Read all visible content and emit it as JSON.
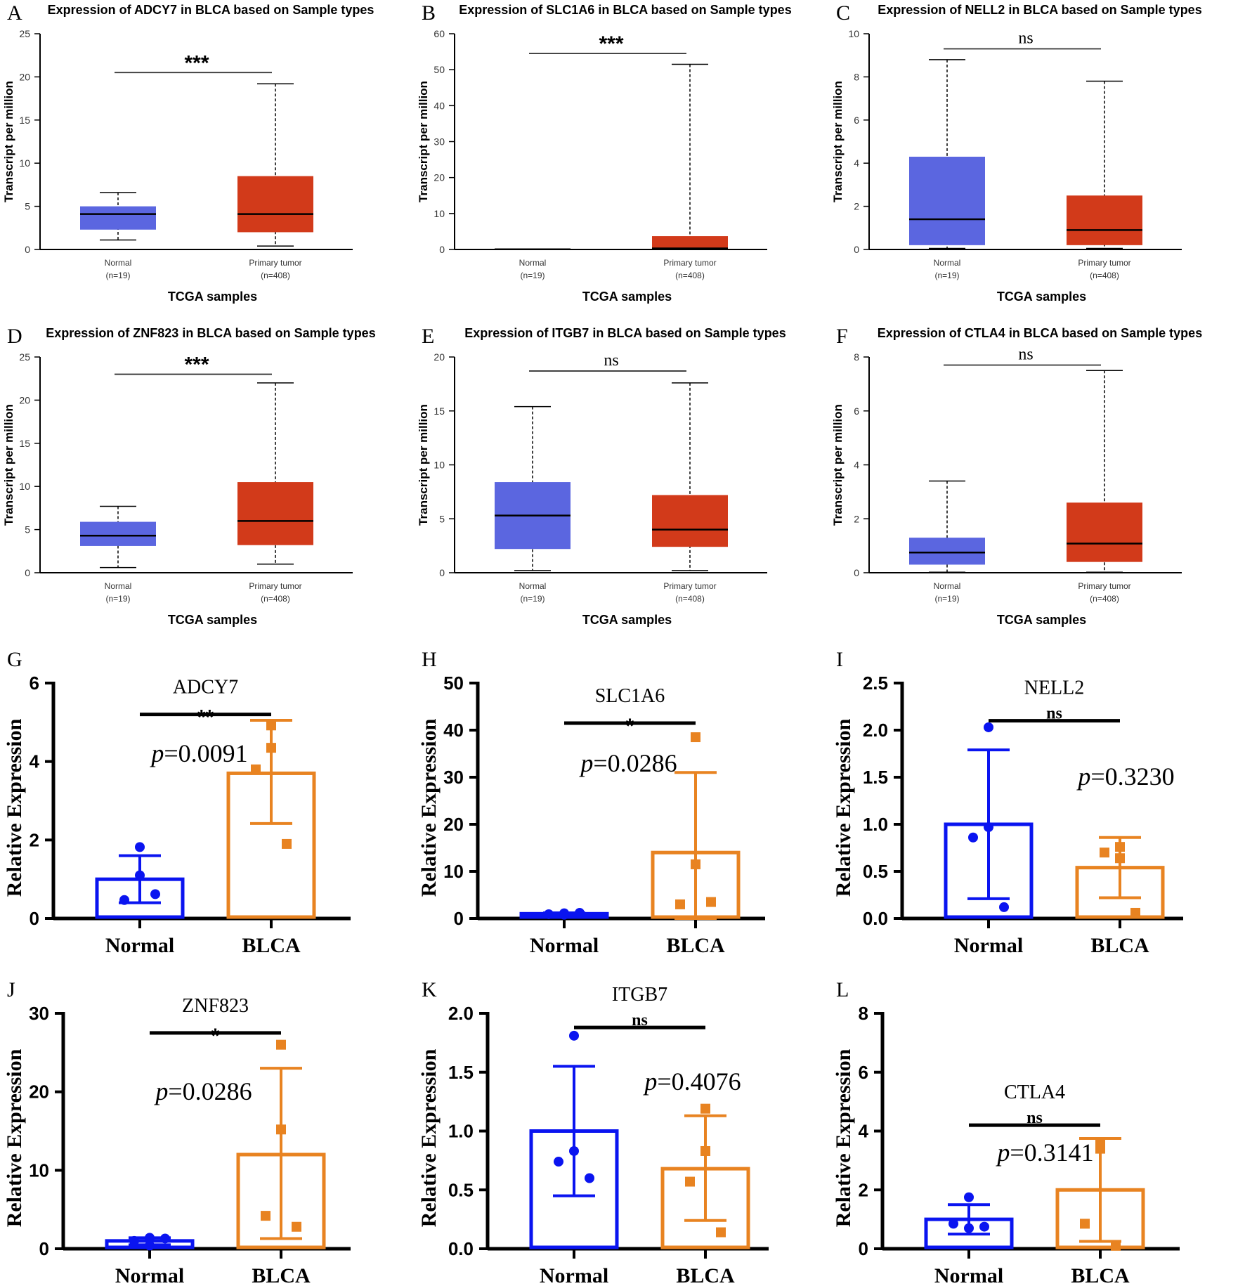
{
  "chart_data": [
    {
      "panel": "A",
      "type": "box",
      "title": "Expression of ADCY7 in BLCA based on Sample types",
      "ylabel": "Transcript per million",
      "xlabel": "TCGA samples",
      "ylim": [
        0,
        25
      ],
      "yticks": [
        0,
        5,
        10,
        15,
        20,
        25
      ],
      "categories": [
        "Normal",
        "Primary tumor"
      ],
      "counts": [
        "(n=19)",
        "(n=408)"
      ],
      "boxes": [
        {
          "min": 1.1,
          "q1": 2.3,
          "median": 4.1,
          "q3": 5.0,
          "max": 6.6
        },
        {
          "min": 0.4,
          "q1": 2.0,
          "median": 4.1,
          "q3": 8.5,
          "max": 19.2
        }
      ],
      "significance": {
        "label": "***",
        "level": 20.5
      }
    },
    {
      "panel": "B",
      "type": "box",
      "title": "Expression of SLC1A6 in BLCA based on Sample types",
      "ylabel": "Transcript per million",
      "xlabel": "TCGA samples",
      "ylim": [
        0,
        60
      ],
      "yticks": [
        0,
        10,
        20,
        30,
        40,
        50,
        60
      ],
      "categories": [
        "Normal",
        "Primary tumor"
      ],
      "counts": [
        "(n=19)",
        "(n=408)"
      ],
      "boxes": [
        {
          "min": 0,
          "q1": 0,
          "median": 0.05,
          "q3": 0.1,
          "max": 0.1
        },
        {
          "min": 0,
          "q1": 0.1,
          "median": 0.3,
          "q3": 3.7,
          "max": 51.5
        }
      ],
      "significance": {
        "label": "***",
        "level": 54.5
      }
    },
    {
      "panel": "C",
      "type": "box",
      "title": "Expression of NELL2 in BLCA based on Sample types",
      "ylabel": "Transcript per million",
      "xlabel": "TCGA samples",
      "ylim": [
        0,
        10
      ],
      "yticks": [
        0,
        2,
        4,
        6,
        8,
        10
      ],
      "categories": [
        "Normal",
        "Primary tumor"
      ],
      "counts": [
        "(n=19)",
        "(n=408)"
      ],
      "boxes": [
        {
          "min": 0.05,
          "q1": 0.2,
          "median": 1.4,
          "q3": 4.3,
          "max": 8.8
        },
        {
          "min": 0.05,
          "q1": 0.2,
          "median": 0.9,
          "q3": 2.5,
          "max": 7.8
        }
      ],
      "significance": {
        "label": "ns",
        "level": 9.3
      }
    },
    {
      "panel": "D",
      "type": "box",
      "title": "Expression of ZNF823 in BLCA based on Sample types",
      "ylabel": "Transcript per million",
      "xlabel": "TCGA samples",
      "ylim": [
        0,
        25
      ],
      "yticks": [
        0,
        5,
        10,
        15,
        20,
        25
      ],
      "categories": [
        "Normal",
        "Primary tumor"
      ],
      "counts": [
        "(n=19)",
        "(n=408)"
      ],
      "boxes": [
        {
          "min": 0.6,
          "q1": 3.1,
          "median": 4.3,
          "q3": 5.9,
          "max": 7.7
        },
        {
          "min": 1.0,
          "q1": 3.2,
          "median": 6.0,
          "q3": 10.5,
          "max": 22.0
        }
      ],
      "significance": {
        "label": "***",
        "level": 23.0
      }
    },
    {
      "panel": "E",
      "type": "box",
      "title": "Expression of ITGB7 in BLCA based on Sample types",
      "ylabel": "Transcript per million",
      "xlabel": "TCGA samples",
      "ylim": [
        0,
        20
      ],
      "yticks": [
        0,
        5,
        10,
        15,
        20
      ],
      "categories": [
        "Normal",
        "Primary tumor"
      ],
      "counts": [
        "(n=19)",
        "(n=408)"
      ],
      "boxes": [
        {
          "min": 0.2,
          "q1": 2.2,
          "median": 5.3,
          "q3": 8.4,
          "max": 15.4
        },
        {
          "min": 0.2,
          "q1": 2.4,
          "median": 4.0,
          "q3": 7.2,
          "max": 17.6
        }
      ],
      "significance": {
        "label": "ns",
        "level": 18.7
      }
    },
    {
      "panel": "F",
      "type": "box",
      "title": "Expression of CTLA4 in BLCA based on Sample types",
      "ylabel": "Transcript per million",
      "xlabel": "TCGA samples",
      "ylim": [
        0,
        8
      ],
      "yticks": [
        0,
        2,
        4,
        6,
        8
      ],
      "categories": [
        "Normal",
        "Primary tumor"
      ],
      "counts": [
        "(n=19)",
        "(n=408)"
      ],
      "boxes": [
        {
          "min": 0.02,
          "q1": 0.3,
          "median": 0.75,
          "q3": 1.3,
          "max": 3.4
        },
        {
          "min": 0.02,
          "q1": 0.4,
          "median": 1.08,
          "q3": 2.6,
          "max": 7.5
        }
      ],
      "significance": {
        "label": "ns",
        "level": 7.7
      }
    },
    {
      "panel": "G",
      "type": "bar",
      "title": "ADCY7",
      "ylabel": "Relative Expression",
      "ylim": [
        0,
        6
      ],
      "yticks": [
        "0",
        "2",
        "4",
        "6"
      ],
      "categories": [
        "Normal",
        "BLCA"
      ],
      "bars": [
        {
          "mean": 1.0,
          "err_low": 0.4,
          "err_high": 1.6,
          "points": [
            1.82,
            1.1,
            0.47,
            0.62
          ]
        },
        {
          "mean": 3.7,
          "err_low": 2.42,
          "err_high": 5.05,
          "points": [
            4.92,
            4.35,
            3.8,
            1.9
          ]
        }
      ],
      "p_value": "=0.0091",
      "p_label": "p",
      "significance": {
        "label": "**",
        "level": 5.2
      }
    },
    {
      "panel": "H",
      "type": "bar",
      "title": "SLC1A6",
      "ylabel": "Relative Expression",
      "ylim": [
        0,
        50
      ],
      "yticks": [
        "0",
        "10",
        "20",
        "30",
        "40",
        "50"
      ],
      "categories": [
        "Normal",
        "BLCA"
      ],
      "bars": [
        {
          "mean": 1.0,
          "err_low": 0.8,
          "err_high": 1.2,
          "points": [
            0.8,
            1.1,
            0.9,
            1.2
          ]
        },
        {
          "mean": 14.0,
          "err_low": 0,
          "err_high": 31.0,
          "points": [
            38.5,
            11.5,
            3.0,
            3.5
          ]
        }
      ],
      "p_value": "=0.0286",
      "p_label": "p",
      "significance": {
        "label": "*",
        "level": 41.5
      }
    },
    {
      "panel": "I",
      "type": "bar",
      "title": "NELL2",
      "ylabel": "Relative Expression",
      "ylim": [
        0,
        2.5
      ],
      "yticks": [
        "0.0",
        "0.5",
        "1.0",
        "1.5",
        "2.0",
        "2.5"
      ],
      "categories": [
        "Normal",
        "BLCA"
      ],
      "bars": [
        {
          "mean": 1.0,
          "err_low": 0.21,
          "err_high": 1.79,
          "points": [
            2.03,
            0.97,
            0.86,
            0.12
          ]
        },
        {
          "mean": 0.54,
          "err_low": 0.22,
          "err_high": 0.86,
          "points": [
            0.76,
            0.64,
            0.7,
            0.06
          ]
        }
      ],
      "p_value": "=0.3230",
      "p_label": "p",
      "significance": {
        "label": "ns",
        "level": 2.1
      }
    },
    {
      "panel": "J",
      "type": "bar",
      "title": "ZNF823",
      "ylabel": "Relative Expression",
      "ylim": [
        0,
        30
      ],
      "yticks": [
        "0",
        "10",
        "20",
        "30"
      ],
      "categories": [
        "Normal",
        "BLCA"
      ],
      "bars": [
        {
          "mean": 1.0,
          "err_low": 0.5,
          "err_high": 1.4,
          "points": [
            0.4,
            1.4,
            1.0,
            1.3
          ]
        },
        {
          "mean": 12.0,
          "err_low": 1.3,
          "err_high": 23.0,
          "points": [
            26.0,
            15.2,
            4.2,
            2.8
          ]
        }
      ],
      "p_value": "=0.0286",
      "p_label": "p",
      "significance": {
        "label": "*",
        "level": 27.5
      }
    },
    {
      "panel": "K",
      "type": "bar",
      "title": "ITGB7",
      "ylabel": "Relative Expression",
      "ylim": [
        0,
        2.0
      ],
      "yticks": [
        "0.0",
        "0.5",
        "1.0",
        "1.5",
        "2.0"
      ],
      "categories": [
        "Normal",
        "BLCA"
      ],
      "bars": [
        {
          "mean": 1.0,
          "err_low": 0.45,
          "err_high": 1.55,
          "points": [
            1.81,
            0.83,
            0.74,
            0.6
          ]
        },
        {
          "mean": 0.68,
          "err_low": 0.24,
          "err_high": 1.13,
          "points": [
            1.19,
            0.83,
            0.57,
            0.14
          ]
        }
      ],
      "p_value": "=0.4076",
      "p_label": "p",
      "significance": {
        "label": "ns",
        "level": 1.88
      }
    },
    {
      "panel": "L",
      "type": "bar",
      "title": "CTLA4",
      "ylabel": "Relative Expression",
      "ylim": [
        0,
        8
      ],
      "yticks": [
        "0",
        "2",
        "4",
        "6",
        "8"
      ],
      "categories": [
        "Normal",
        "BLCA"
      ],
      "bars": [
        {
          "mean": 1.0,
          "err_low": 0.5,
          "err_high": 1.5,
          "points": [
            1.75,
            0.7,
            0.85,
            0.75
          ]
        },
        {
          "mean": 2.0,
          "err_low": 0.25,
          "err_high": 3.75,
          "points": [
            3.4,
            3.6,
            0.85,
            0.1
          ]
        }
      ],
      "p_value": "=0.3141",
      "p_label": "p",
      "significance": {
        "label": "ns",
        "level": 4.2
      }
    }
  ],
  "colors": {
    "box_normal": "#5b66e0",
    "box_tumor": "#d23a1a",
    "bar_normal": "#0a14f0",
    "bar_tumor": "#e88321"
  }
}
